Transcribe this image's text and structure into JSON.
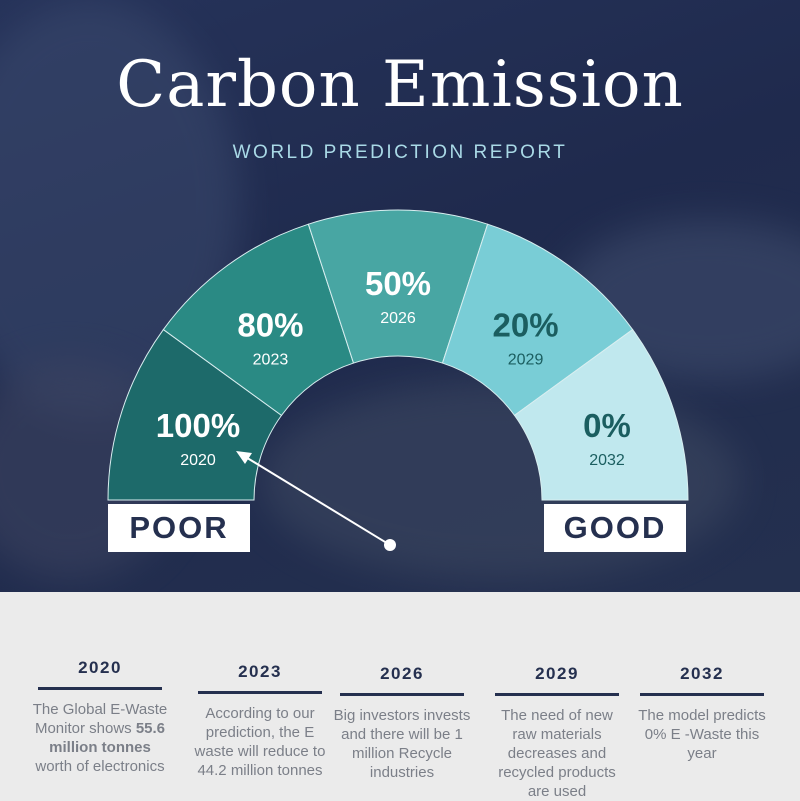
{
  "header": {
    "title": "Carbon Emission",
    "subtitle": "WORLD PREDICTION REPORT"
  },
  "colors": {
    "background": "#24304f",
    "panel": "#ebebeb",
    "text_dark": "#25304f",
    "segments": [
      "#1d6a6a",
      "#2a8a84",
      "#48a6a3",
      "#79cdd6",
      "#c0e8ee"
    ]
  },
  "chart_data": {
    "type": "gauge",
    "categories": [
      "2020",
      "2023",
      "2026",
      "2029",
      "2032"
    ],
    "values": [
      100,
      80,
      50,
      20,
      0
    ],
    "value_labels": [
      "100%",
      "80%",
      "50%",
      "20%",
      "0%"
    ],
    "scale_labels": {
      "left": "POOR",
      "right": "GOOD"
    },
    "needle_points_to": "2020"
  },
  "timeline": [
    {
      "year": "2020",
      "text_before": "The Global E-Waste Monitor  shows ",
      "bold": "55.6 million tonnes",
      "text_after": " worth of electronics"
    },
    {
      "year": "2023",
      "text_before": "According to our prediction, the E waste will reduce to 44.2 million tonnes",
      "bold": "",
      "text_after": ""
    },
    {
      "year": "2026",
      "text_before": "Big investors invests and there will be 1 million Recycle industries",
      "bold": "",
      "text_after": ""
    },
    {
      "year": "2029",
      "text_before": "The need of new raw materials decreases and recycled products are used",
      "bold": "",
      "text_after": ""
    },
    {
      "year": "2032",
      "text_before": "The model predicts 0% E -Waste this year",
      "bold": "",
      "text_after": ""
    }
  ]
}
